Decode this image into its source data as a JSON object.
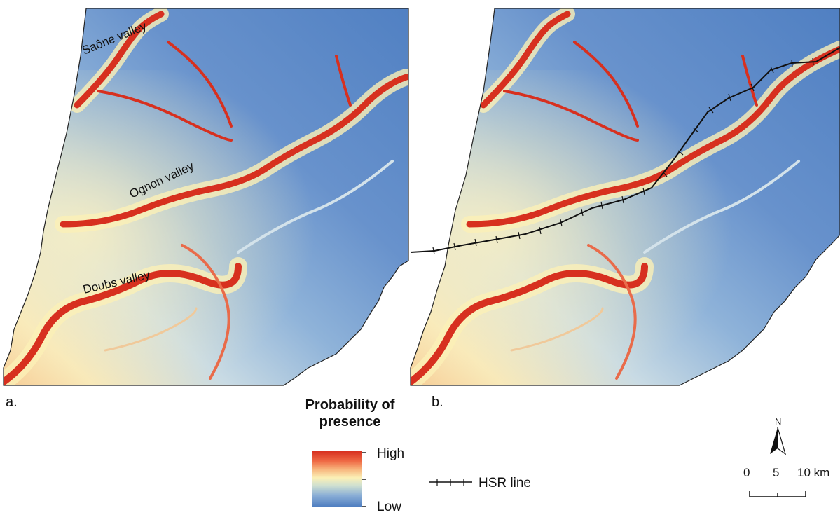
{
  "panels": [
    {
      "letter": "a.",
      "labels": [
        "Saône valley",
        "Ognon valley",
        "Doubs valley"
      ]
    },
    {
      "letter": "b.",
      "labels": []
    }
  ],
  "legend": {
    "title_line1": "Probability of",
    "title_line2": "presence",
    "high": "High",
    "low": "Low",
    "hsr_label": "HSR line"
  },
  "north": {
    "letter": "N"
  },
  "scale": {
    "ticks": [
      "0",
      "5",
      "10 km"
    ]
  },
  "colors": {
    "high": "#d7301f",
    "mid": "#fbf0b6",
    "low": "#4f7ec1",
    "hsr_line": "#111111"
  }
}
